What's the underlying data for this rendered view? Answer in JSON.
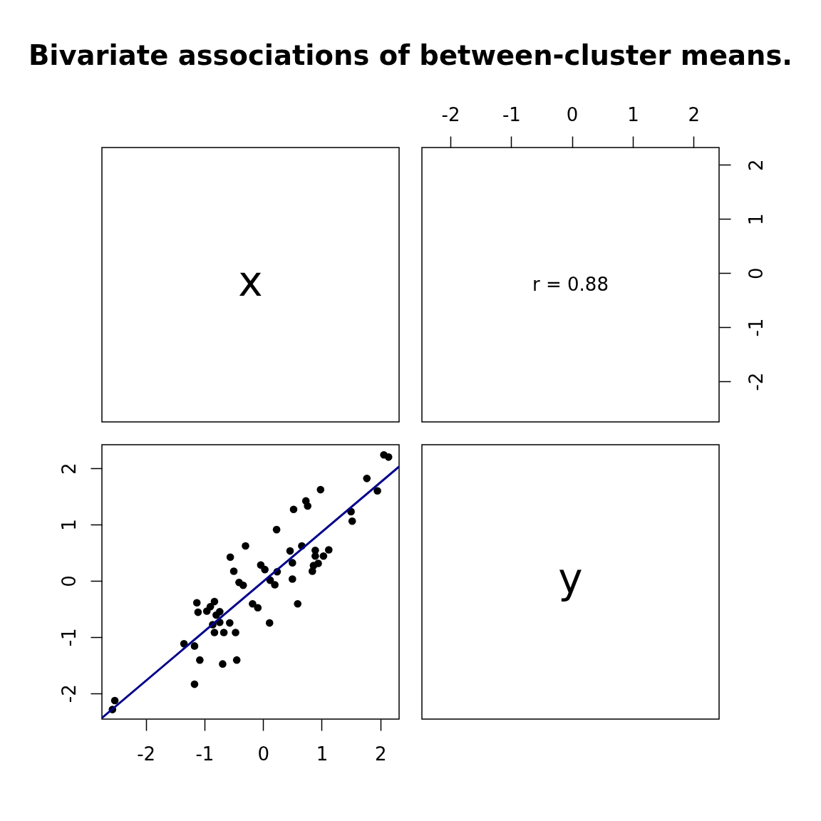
{
  "chart_data": [
    {
      "type": "other",
      "title": "Bivariate associations of between-cluster means.",
      "annotations": [
        "x"
      ]
    },
    {
      "type": "scatter",
      "annotations": [
        "r = 0.88"
      ],
      "xlim": [
        -2.47,
        2.42
      ],
      "xticks": [
        -2,
        -1,
        0,
        1,
        2
      ],
      "ylim": [
        -2.75,
        2.32
      ],
      "yticks": [
        -2,
        -1,
        0,
        1,
        2
      ]
    },
    {
      "type": "scatter",
      "xlim": [
        -2.75,
        2.32
      ],
      "ylim": [
        -2.46,
        2.42
      ],
      "xticks": [
        -2,
        -1,
        0,
        1,
        2
      ],
      "yticks": [
        -2,
        -1,
        0,
        1,
        2
      ],
      "series": [
        {
          "color": "#000000",
          "marker": "circle",
          "x": [
            -2.57,
            -2.53,
            -1.35,
            -1.17,
            -1.17,
            -1.13,
            -1.11,
            -1.08,
            -0.96,
            -0.9,
            -0.83,
            -0.86,
            -0.8,
            -0.83,
            -0.74,
            -0.74,
            -0.69,
            -0.67,
            -0.57,
            -0.56,
            -0.5,
            -0.47,
            -0.45,
            -0.41,
            -0.34,
            -0.3,
            -0.18,
            -0.09,
            -0.04,
            0.03,
            0.11,
            0.12,
            0.2,
            0.23,
            0.24,
            0.46,
            0.5,
            0.5,
            0.52,
            0.59,
            0.66,
            0.73,
            0.76,
            0.84,
            0.86,
            0.89,
            0.89,
            0.94,
            0.98,
            1.03,
            1.12,
            1.5,
            1.52,
            1.77,
            1.95,
            2.06,
            2.14
          ],
          "values": [
            -2.29,
            -2.13,
            -1.12,
            -1.16,
            -1.84,
            -0.39,
            -0.56,
            -1.41,
            -0.54,
            -0.46,
            -0.37,
            -0.78,
            -0.61,
            -0.92,
            -0.55,
            -0.74,
            -1.48,
            -0.92,
            -0.75,
            0.42,
            0.17,
            -0.92,
            -1.41,
            -0.03,
            -0.08,
            0.62,
            -0.41,
            -0.48,
            0.28,
            0.2,
            -0.75,
            0.01,
            -0.07,
            0.91,
            0.16,
            0.53,
            0.32,
            0.03,
            1.27,
            -0.41,
            0.62,
            1.42,
            1.33,
            0.17,
            0.27,
            0.44,
            0.54,
            0.31,
            1.62,
            0.44,
            0.55,
            1.23,
            1.06,
            1.82,
            1.6,
            2.24,
            2.2
          ]
        },
        {
          "type": "line",
          "color": "#00008b",
          "x": [
            -2.75,
            2.32
          ],
          "values": [
            -2.44,
            2.03
          ]
        }
      ]
    },
    {
      "type": "other",
      "annotations": [
        "y"
      ]
    }
  ]
}
